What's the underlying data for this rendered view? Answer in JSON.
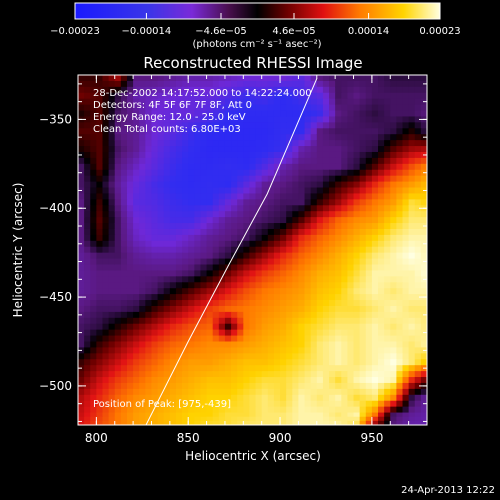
{
  "chart_data": {
    "type": "heatmap",
    "title": "Reconstructed RHESSI Image",
    "xlabel": "Heliocentric X (arcsec)",
    "ylabel": "Heliocentric Y (arcsec)",
    "xlim": [
      790,
      980
    ],
    "ylim": [
      -522,
      -325
    ],
    "x_ticks": [
      800,
      850,
      900,
      950
    ],
    "y_ticks": [
      -350,
      -400,
      -450,
      -500
    ],
    "x_tick_labels": [
      "800",
      "850",
      "900",
      "950"
    ],
    "y_tick_labels": [
      "−350",
      "−400",
      "−450",
      "−500"
    ],
    "grid": false,
    "colorbar": {
      "min": -0.00023,
      "max": 0.00023,
      "ticks": [
        -0.00023,
        -0.00014,
        -4.6e-05,
        4.6e-05,
        0.00014,
        0.00023
      ],
      "tick_labels": [
        "−0.00023",
        "−0.00014",
        "−4.6e−05",
        "4.6e−05",
        "0.00014",
        "0.00023"
      ],
      "units_label": "(photons cm⁻² s⁻¹ asec⁻²)"
    },
    "annotations": [
      "28-Dec-2002 14:17:52.000 to 14:22:24.000",
      "Detectors: 4F 5F 6F 7F 8F, Att 0",
      "Energy Range: 12.0 - 25.0 keV",
      "Clean    Total counts: 6.80E+03"
    ],
    "peak_label": "Position of Peak: [975,-439]",
    "limb_curve": {
      "x": [
        827,
        850,
        872,
        893,
        920
      ],
      "y": [
        -522,
        -475,
        -432,
        -392,
        -327
      ]
    },
    "field_description_grid": {
      "x": [
        790,
        800,
        810,
        820,
        830,
        840,
        850,
        860,
        870,
        880,
        890,
        900,
        910,
        920,
        930,
        940,
        950,
        960,
        970,
        980
      ],
      "y": [
        -325,
        -335,
        -345,
        -355,
        -365,
        -375,
        -385,
        -395,
        -405,
        -415,
        -425,
        -435,
        -445,
        -455,
        -465,
        -475,
        -485,
        -495,
        -505,
        -515,
        -522
      ],
      "note_levels": "values in colorbar units (x1e-4)",
      "z": [
        [
          0.2,
          0.2,
          0.6,
          -0.4,
          -0.4,
          -0.5,
          -0.6,
          -0.6,
          -0.7,
          -0.8,
          -0.8,
          -0.8,
          -1.0,
          -0.4,
          -0.3,
          -0.3,
          -0.3,
          -0.2,
          -0.2,
          -0.2
        ],
        [
          0.4,
          0.3,
          -0.2,
          -0.6,
          -0.7,
          -0.8,
          -0.9,
          -0.9,
          -1.1,
          -1.3,
          -1.2,
          -1.5,
          -1.2,
          -1.0,
          -0.3,
          -0.4,
          -0.3,
          -0.3,
          -0.3,
          -0.3
        ],
        [
          0.1,
          0.3,
          -0.3,
          -0.5,
          -0.8,
          -0.9,
          -0.9,
          -1.1,
          -1.4,
          -1.5,
          -1.5,
          -1.5,
          -1.5,
          -1.3,
          -0.4,
          -0.3,
          -0.2,
          -0.3,
          -0.3,
          -0.4
        ],
        [
          0.3,
          0.3,
          -0.4,
          -0.5,
          -0.8,
          -1.0,
          -1.3,
          -1.5,
          -1.6,
          -1.6,
          -1.6,
          -1.4,
          -1.4,
          -0.4,
          -0.3,
          -0.3,
          -0.3,
          -0.2,
          0.1,
          -0.3
        ],
        [
          0.1,
          0.3,
          -0.3,
          -0.5,
          -0.9,
          -1.2,
          -1.4,
          -1.6,
          -1.6,
          -1.6,
          -1.5,
          -1.3,
          -0.6,
          -0.4,
          -0.4,
          -0.3,
          -0.2,
          0.3,
          0.6,
          0.7
        ],
        [
          -0.3,
          0.3,
          -0.4,
          -0.7,
          -1.0,
          -1.3,
          -1.5,
          -1.5,
          -1.4,
          -1.5,
          -1.1,
          -0.6,
          -0.4,
          -0.4,
          -0.4,
          -0.2,
          0.3,
          0.8,
          1.2,
          1.5
        ],
        [
          -0.3,
          0.0,
          -0.5,
          -0.9,
          -1.2,
          -1.4,
          -1.5,
          -1.4,
          -1.5,
          -1.0,
          -0.5,
          -0.4,
          -0.3,
          -0.2,
          0.2,
          0.5,
          1.0,
          1.4,
          1.6,
          1.8
        ],
        [
          -0.4,
          0.2,
          -0.4,
          -1.0,
          -1.1,
          -1.3,
          -1.4,
          -1.4,
          -0.9,
          -0.5,
          -0.4,
          -0.3,
          -0.3,
          0.2,
          0.6,
          1.1,
          1.4,
          1.6,
          2.0,
          1.9
        ],
        [
          -0.4,
          0.3,
          -0.3,
          -0.8,
          -1.0,
          -1.2,
          -1.2,
          -0.8,
          -0.5,
          -0.4,
          -0.3,
          -0.2,
          0.3,
          0.9,
          1.3,
          1.5,
          1.6,
          1.9,
          2.1,
          2.1
        ],
        [
          -0.4,
          0.2,
          -0.3,
          -0.7,
          -0.9,
          -0.9,
          -0.7,
          -0.5,
          -0.4,
          -0.3,
          0.0,
          0.4,
          1.0,
          1.3,
          1.5,
          1.7,
          1.9,
          2.1,
          2.2,
          2.2
        ],
        [
          -0.5,
          -0.3,
          -0.3,
          -0.5,
          -0.6,
          -0.6,
          -0.5,
          -0.4,
          -0.2,
          0.2,
          0.6,
          1.0,
          1.3,
          1.5,
          1.7,
          1.9,
          2.1,
          2.2,
          2.3,
          2.2
        ],
        [
          -0.5,
          -0.4,
          -0.4,
          -0.4,
          -0.4,
          -0.4,
          -0.3,
          0.0,
          0.4,
          0.8,
          1.1,
          1.3,
          1.5,
          1.7,
          1.8,
          2.0,
          2.2,
          2.2,
          2.2,
          2.3
        ],
        [
          -0.5,
          -0.4,
          -0.4,
          -0.4,
          -0.3,
          0.0,
          0.3,
          0.6,
          0.9,
          1.2,
          1.4,
          1.5,
          1.6,
          1.8,
          1.9,
          2.1,
          2.2,
          2.1,
          2.2,
          2.2
        ],
        [
          -0.4,
          -0.3,
          -0.3,
          -0.2,
          0.2,
          0.5,
          0.8,
          1.1,
          1.3,
          1.4,
          1.5,
          1.6,
          1.7,
          1.9,
          2.0,
          2.0,
          2.1,
          2.2,
          2.1,
          2.1
        ],
        [
          -0.3,
          -0.2,
          0.1,
          0.4,
          0.7,
          1.0,
          1.2,
          1.3,
          0.2,
          1.4,
          1.6,
          1.7,
          1.9,
          2.0,
          2.1,
          2.1,
          2.2,
          2.1,
          2.2,
          2.1
        ],
        [
          -0.3,
          0.2,
          0.5,
          0.8,
          1.1,
          1.3,
          1.4,
          1.5,
          1.5,
          1.6,
          1.7,
          1.8,
          1.9,
          2.1,
          2.2,
          2.1,
          2.2,
          2.2,
          2.1,
          2.2
        ],
        [
          0.2,
          0.5,
          0.8,
          1.1,
          1.3,
          1.5,
          1.6,
          1.6,
          1.7,
          1.8,
          1.8,
          1.9,
          2.0,
          2.1,
          2.2,
          2.1,
          2.2,
          2.3,
          2.1,
          1.8
        ],
        [
          0.4,
          0.8,
          1.1,
          1.3,
          1.5,
          1.6,
          1.7,
          1.8,
          1.8,
          1.9,
          2.0,
          2.0,
          2.1,
          2.2,
          2.0,
          2.2,
          2.3,
          2.2,
          1.0,
          0.2
        ],
        [
          0.7,
          1.0,
          1.3,
          1.5,
          1.6,
          1.7,
          1.8,
          1.9,
          1.9,
          2.0,
          2.1,
          2.0,
          2.2,
          2.1,
          2.2,
          2.0,
          2.1,
          1.5,
          -0.2,
          -0.6
        ],
        [
          0.8,
          1.1,
          1.4,
          1.6,
          1.7,
          1.8,
          1.9,
          1.9,
          2.0,
          2.0,
          2.1,
          2.1,
          2.2,
          2.2,
          2.1,
          2.2,
          1.4,
          -0.3,
          -0.5,
          -0.6
        ],
        [
          0.9,
          1.2,
          1.4,
          1.6,
          1.7,
          1.8,
          1.9,
          2.0,
          2.0,
          2.1,
          2.1,
          2.1,
          2.2,
          2.2,
          2.2,
          2.0,
          0.3,
          -0.4,
          -0.6,
          -0.6
        ]
      ]
    }
  },
  "footer": {
    "timestamp": "24-Apr-2013 12:22"
  },
  "colors": {
    "background": "#000000",
    "frame": "#ffffff",
    "limb": "#ffffff"
  }
}
